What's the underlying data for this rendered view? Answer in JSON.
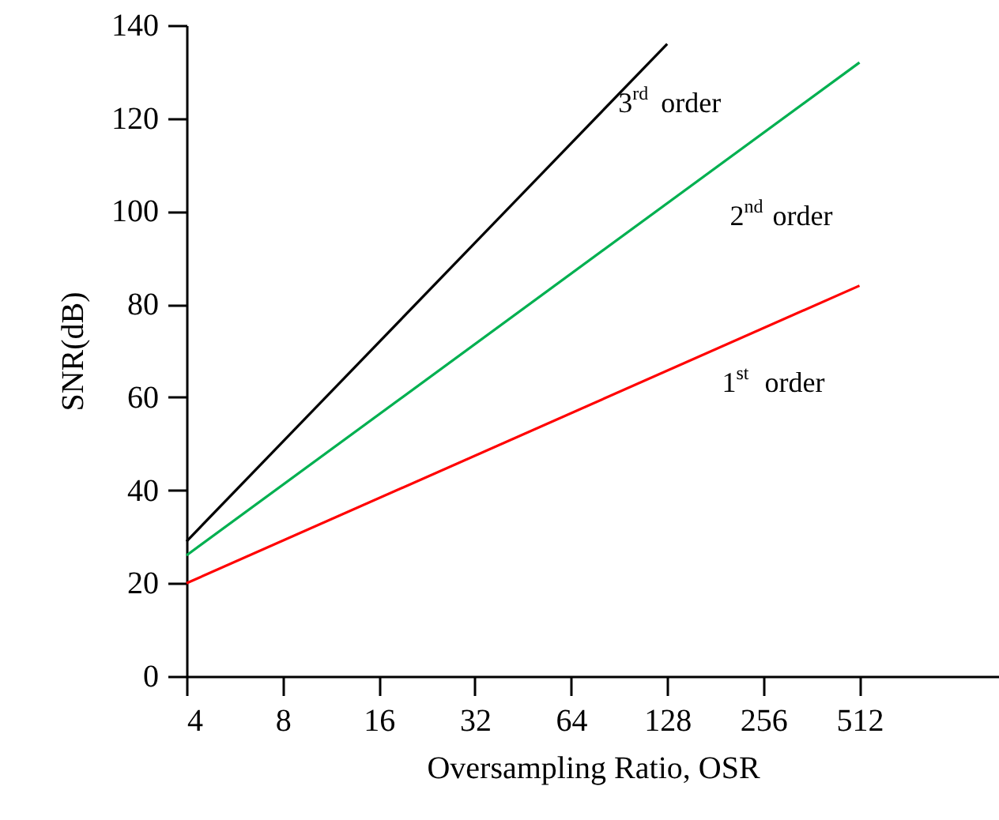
{
  "chart_data": {
    "type": "line",
    "xlabel": "Oversampling Ratio, OSR",
    "ylabel": "SNR(dB)",
    "log": "x",
    "xlim": [
      4,
      1400
    ],
    "xticks": [
      4,
      8,
      16,
      32,
      64,
      128,
      256,
      512
    ],
    "ylim": [
      0,
      140
    ],
    "yticks": [
      0,
      20,
      40,
      60,
      80,
      100,
      120,
      140
    ],
    "grid": false,
    "marker": "none",
    "line_style": "solid",
    "series": [
      {
        "name": "1$^{st}$ order",
        "color": "#ff0000",
        "x": [
          4,
          512
        ],
        "values": [
          20,
          84
        ]
      },
      {
        "name": "2$^{nd}$ order",
        "color": "#00b050",
        "x": [
          4,
          512
        ],
        "values": [
          26,
          132
        ]
      },
      {
        "name": "3$^{rd}$ order",
        "color": "#000000",
        "x": [
          4,
          128
        ],
        "values": [
          29,
          136
        ]
      }
    ]
  }
}
